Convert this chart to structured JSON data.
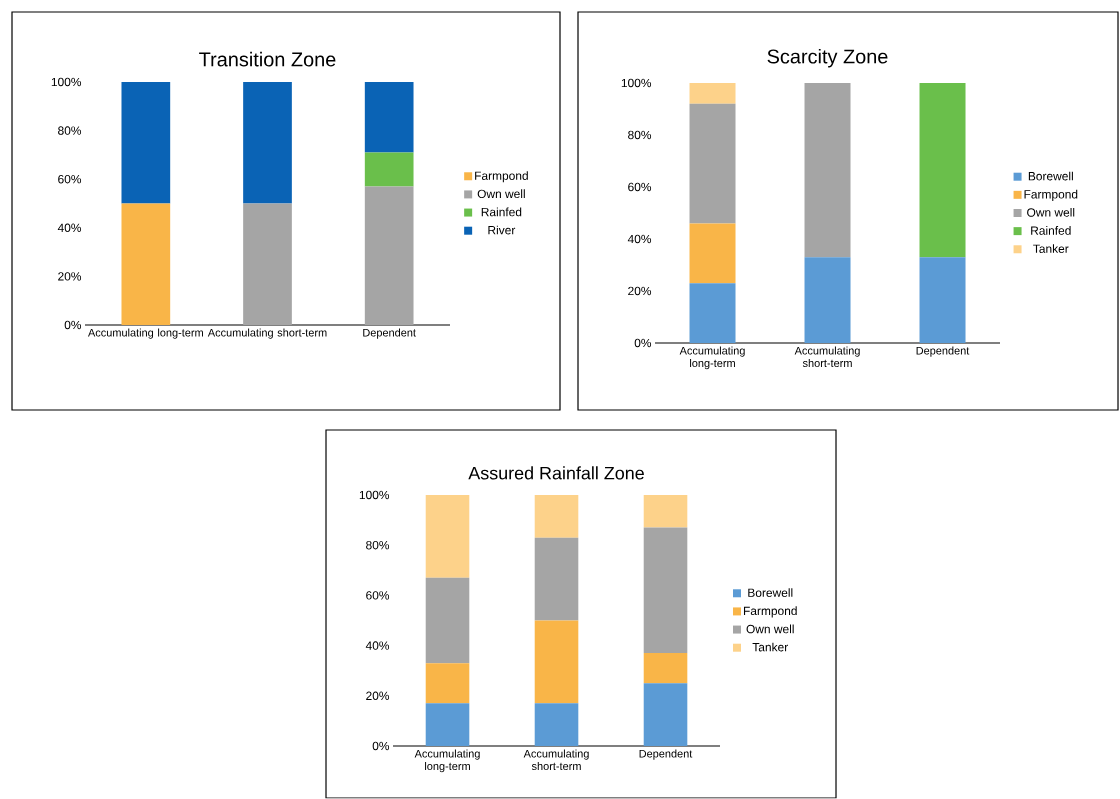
{
  "chart_data": [
    {
      "type": "bar",
      "stacked": true,
      "title": "Transition Zone",
      "categories": [
        "Accumulating long-term",
        "Accumulating short-term",
        "Dependent"
      ],
      "ylim": [
        0,
        100
      ],
      "yticks": [
        {
          "value": 0,
          "label": "0%"
        },
        {
          "value": 20,
          "label": "20%"
        },
        {
          "value": 40,
          "label": "40%"
        },
        {
          "value": 60,
          "label": "60%"
        },
        {
          "value": 80,
          "label": "80%"
        },
        {
          "value": 100,
          "label": "100%"
        }
      ],
      "legend": "right",
      "series": [
        {
          "name": "Farmpond",
          "color": "#f9b548",
          "values": [
            50,
            0,
            0
          ]
        },
        {
          "name": "Own well",
          "color": "#a5a5a5",
          "values": [
            0,
            50,
            57
          ]
        },
        {
          "name": "Rainfed",
          "color": "#6abf4b",
          "values": [
            0,
            0,
            14
          ]
        },
        {
          "name": "River",
          "color": "#0a63b5",
          "values": [
            50,
            50,
            29
          ]
        }
      ]
    },
    {
      "type": "bar",
      "stacked": true,
      "title": "Scarcity Zone",
      "categories": [
        "Accumulating long-term",
        "Accumulating short-term",
        "Dependent"
      ],
      "ylim": [
        0,
        100
      ],
      "yticks": [
        {
          "value": 0,
          "label": "0%"
        },
        {
          "value": 20,
          "label": "20%"
        },
        {
          "value": 40,
          "label": "40%"
        },
        {
          "value": 60,
          "label": "60%"
        },
        {
          "value": 80,
          "label": "80%"
        },
        {
          "value": 100,
          "label": "100%"
        }
      ],
      "legend": "right",
      "series": [
        {
          "name": "Borewell",
          "color": "#5b9bd5",
          "values": [
            23,
            33,
            33
          ]
        },
        {
          "name": "Farmpond",
          "color": "#f9b548",
          "values": [
            23,
            0,
            0
          ]
        },
        {
          "name": "Own well",
          "color": "#a5a5a5",
          "values": [
            46,
            67,
            0
          ]
        },
        {
          "name": "Rainfed",
          "color": "#6abf4b",
          "values": [
            0,
            0,
            67
          ]
        },
        {
          "name": "Tanker",
          "color": "#fdd28a",
          "values": [
            8,
            0,
            0
          ]
        }
      ]
    },
    {
      "type": "bar",
      "stacked": true,
      "title": "Assured Rainfall Zone",
      "categories": [
        "Accumulating long-term",
        "Accumulating short-term",
        "Dependent"
      ],
      "ylim": [
        0,
        100
      ],
      "yticks": [
        {
          "value": 0,
          "label": "0%"
        },
        {
          "value": 20,
          "label": "20%"
        },
        {
          "value": 40,
          "label": "40%"
        },
        {
          "value": 60,
          "label": "60%"
        },
        {
          "value": 80,
          "label": "80%"
        },
        {
          "value": 100,
          "label": "100%"
        }
      ],
      "legend": "right",
      "series": [
        {
          "name": "Borewell",
          "color": "#5b9bd5",
          "values": [
            17,
            17,
            25
          ]
        },
        {
          "name": "Farmpond",
          "color": "#f9b548",
          "values": [
            16,
            33,
            12
          ]
        },
        {
          "name": "Own well",
          "color": "#a5a5a5",
          "values": [
            34,
            33,
            50
          ]
        },
        {
          "name": "Tanker",
          "color": "#fdd28a",
          "values": [
            33,
            17,
            13
          ]
        }
      ]
    }
  ]
}
